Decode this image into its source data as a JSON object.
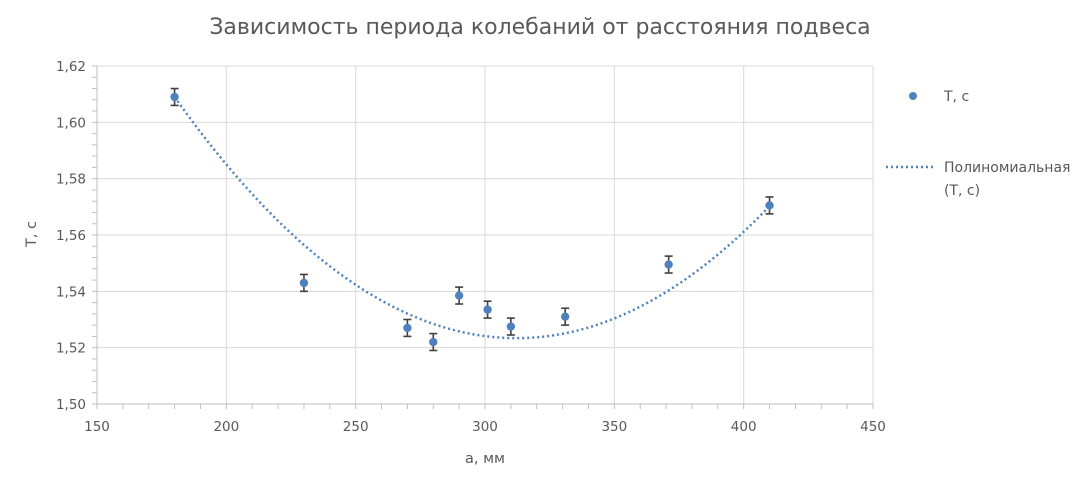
{
  "chart_data": {
    "type": "scatter",
    "title": "Зависимость периода колебаний от расстояния подвеса",
    "xlabel": "a, мм",
    "ylabel": "Т, с",
    "xlim": [
      150,
      450
    ],
    "ylim": [
      1.5,
      1.62
    ],
    "x_ticks": [
      150,
      200,
      250,
      300,
      350,
      400,
      450
    ],
    "y_ticks": [
      1.5,
      1.52,
      1.54,
      1.56,
      1.58,
      1.6,
      1.62
    ],
    "y_tick_labels": [
      "1,50",
      "1,52",
      "1,54",
      "1,56",
      "1,58",
      "1,60",
      "1,62"
    ],
    "grid": true,
    "legend_position": "right",
    "series": [
      {
        "name": "Т, с",
        "color": "#4f81bd",
        "x": [
          180,
          230,
          270,
          280,
          290,
          301,
          310,
          331,
          371,
          410
        ],
        "y": [
          1.609,
          1.543,
          1.527,
          1.522,
          1.5385,
          1.5335,
          1.5275,
          1.531,
          1.5495,
          1.5705
        ],
        "error": 0.003
      }
    ],
    "trendline": {
      "name": "Полиномиальная (Т, с)",
      "name_lines": [
        "Полиномиальная",
        "(Т, с)"
      ],
      "type": "polynomial",
      "color": "#4f81bd",
      "coefficients": [
        2.00095,
        -0.0030595,
        4.9e-06
      ]
    }
  }
}
